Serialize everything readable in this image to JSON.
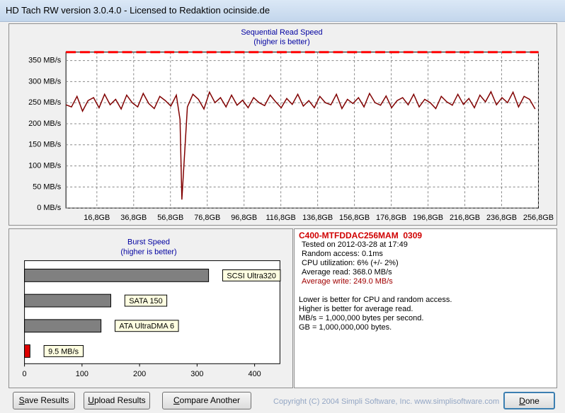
{
  "window_title": "HD Tach RW version 3.0.4.0 - Licensed to Redaktion ocinside.de",
  "chart_data": [
    {
      "type": "line",
      "title": "Sequential Read Speed",
      "subtitle": "(higher is better)",
      "xlim": [
        0,
        256.8
      ],
      "ylim": [
        0,
        370
      ],
      "grid": true,
      "xticks": [
        {
          "value": 16.8,
          "label": "16,8GB"
        },
        {
          "value": 36.8,
          "label": "36,8GB"
        },
        {
          "value": 56.8,
          "label": "56,8GB"
        },
        {
          "value": 76.8,
          "label": "76,8GB"
        },
        {
          "value": 96.8,
          "label": "96,8GB"
        },
        {
          "value": 116.8,
          "label": "116,8GB"
        },
        {
          "value": 136.8,
          "label": "136,8GB"
        },
        {
          "value": 156.8,
          "label": "156,8GB"
        },
        {
          "value": 176.8,
          "label": "176,8GB"
        },
        {
          "value": 196.8,
          "label": "196,8GB"
        },
        {
          "value": 216.8,
          "label": "216,8GB"
        },
        {
          "value": 236.8,
          "label": "236,8GB"
        },
        {
          "value": 256.8,
          "label": "256,8GB"
        }
      ],
      "yticks": [
        {
          "value": 0,
          "label": "0 MB/s"
        },
        {
          "value": 50,
          "label": "50 MB/s"
        },
        {
          "value": 100,
          "label": "100 MB/s"
        },
        {
          "value": 150,
          "label": "150 MB/s"
        },
        {
          "value": 200,
          "label": "200 MB/s"
        },
        {
          "value": 250,
          "label": "250 MB/s"
        },
        {
          "value": 300,
          "label": "300 MB/s"
        },
        {
          "value": 350,
          "label": "350 MB/s"
        }
      ],
      "series": [
        {
          "color": "#800000",
          "x": [
            0,
            3,
            6,
            9,
            12,
            15,
            18,
            21,
            24,
            27,
            30,
            33,
            36,
            39,
            42,
            45,
            48,
            51,
            54,
            57,
            60,
            62,
            63,
            66,
            69,
            72,
            75,
            78,
            81,
            84,
            87,
            90,
            93,
            96,
            99,
            102,
            105,
            108,
            111,
            114,
            117,
            120,
            123,
            126,
            129,
            132,
            135,
            138,
            141,
            144,
            147,
            150,
            153,
            156,
            159,
            162,
            165,
            168,
            171,
            174,
            177,
            180,
            183,
            186,
            189,
            192,
            195,
            198,
            201,
            204,
            207,
            210,
            213,
            216,
            219,
            222,
            225,
            228,
            231,
            234,
            237,
            240,
            243,
            246,
            249,
            252,
            255
          ],
          "values": [
            245,
            240,
            265,
            230,
            255,
            262,
            238,
            270,
            245,
            258,
            235,
            268,
            250,
            240,
            272,
            248,
            236,
            265,
            255,
            242,
            268,
            210,
            20,
            240,
            270,
            258,
            235,
            275,
            250,
            262,
            240,
            268,
            244,
            256,
            238,
            262,
            250,
            243,
            268,
            252,
            238,
            260,
            246,
            270,
            242,
            255,
            238,
            265,
            250,
            245,
            270,
            236,
            258,
            248,
            262,
            240,
            272,
            250,
            244,
            266,
            238,
            255,
            262,
            245,
            270,
            240,
            258,
            250,
            236,
            265,
            252,
            244,
            270,
            246,
            260,
            238,
            268,
            252,
            276,
            245,
            262,
            250,
            275,
            240,
            265,
            258,
            235
          ]
        },
        {
          "color": "#ff0000",
          "dashed": true,
          "x": [
            0,
            256.8
          ],
          "values": [
            370,
            370
          ]
        }
      ]
    },
    {
      "type": "hbar",
      "title": "Burst Speed",
      "subtitle": "(higher is better)",
      "xlim": [
        0,
        444
      ],
      "xticks": [
        0,
        100,
        200,
        300,
        400
      ],
      "categories": [
        "SCSI Ultra320",
        "SATA 150",
        "ATA UltraDMA 6",
        null
      ],
      "values": [
        320,
        150,
        133,
        9.5
      ],
      "value_labels": [
        null,
        null,
        null,
        "9.5 MB/s"
      ],
      "colors": [
        "#808080",
        "#808080",
        "#808080",
        "#e00000"
      ]
    }
  ],
  "info": {
    "drive": "C400-MTFDDAC256MAM  0309",
    "lines": [
      "Tested on 2012-03-28 at 17:49",
      "Random access: 0.1ms",
      "CPU utilization: 6% (+/- 2%)",
      "Average read: 368.0 MB/s",
      "Average write: 249.0 MB/s"
    ],
    "notes": [
      "Lower is better for CPU and random access.",
      "Higher is better for average read.",
      "MB/s = 1,000,000 bytes per second.",
      "GB = 1,000,000,000 bytes."
    ]
  },
  "buttons": [
    "Save Results",
    "Upload Results",
    "Compare Another Drive",
    "Done"
  ],
  "copyright": "Copyright (C) 2004 Simpli Software, Inc. www.simplisoftware.com"
}
